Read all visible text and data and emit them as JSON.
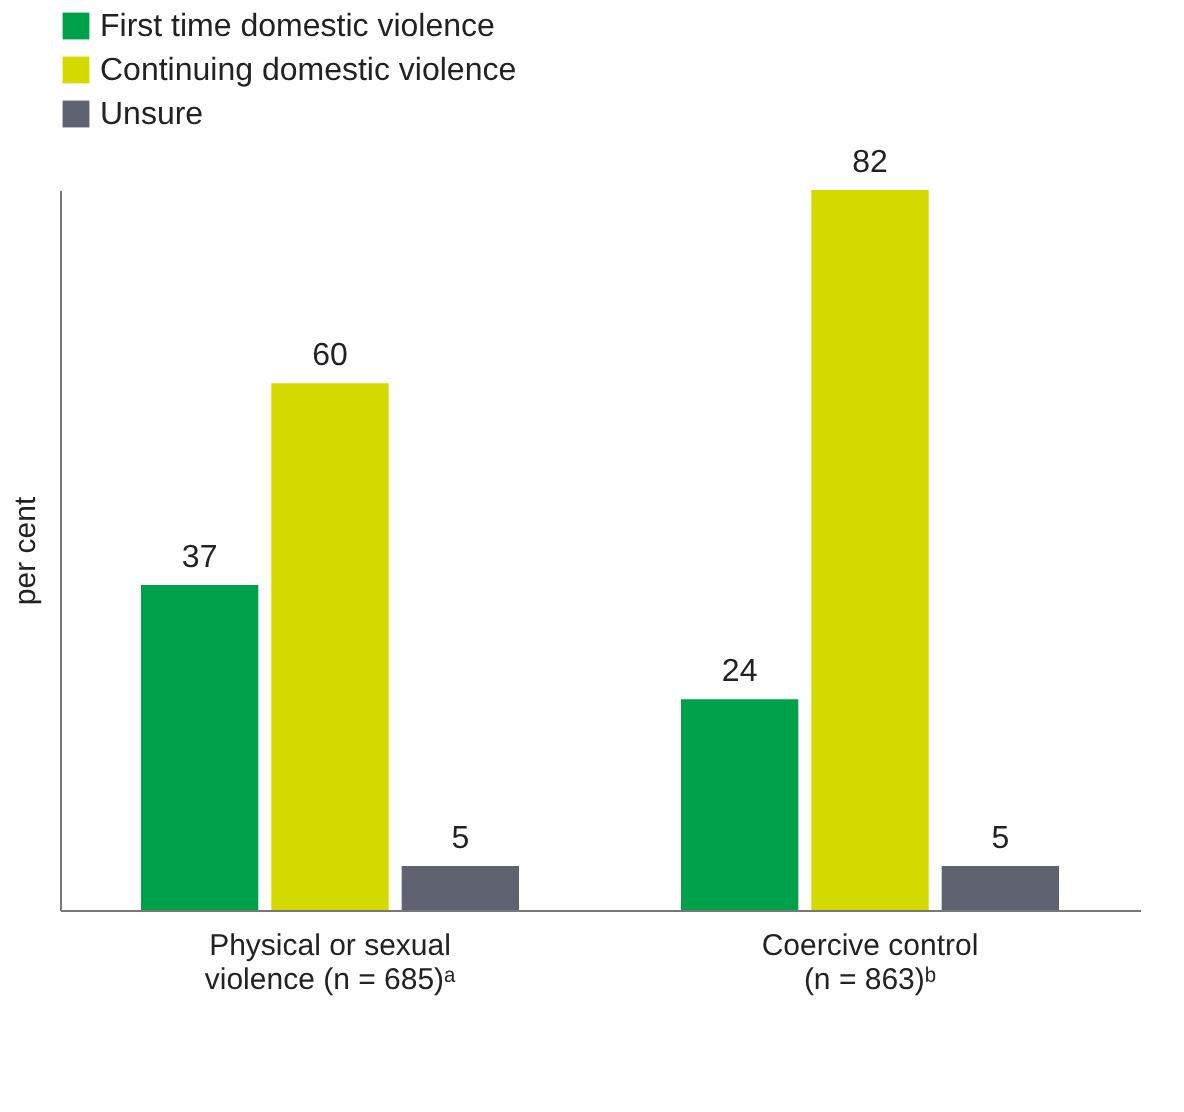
{
  "chart_data": {
    "type": "bar",
    "ylabel": "per cent",
    "categories": [
      "Physical or sexual\nviolence (n = 685)ᵃ",
      "Coercive control\n(n = 863)ᵇ"
    ],
    "series": [
      {
        "name": "First time domestic violence",
        "color": "#00a14b",
        "values": [
          37,
          24
        ]
      },
      {
        "name": "Continuing domestic violence",
        "color": "#d4d900",
        "values": [
          60,
          82
        ]
      },
      {
        "name": "Unsure",
        "color": "#5f6270",
        "values": [
          5,
          5
        ]
      }
    ],
    "data_labels": true,
    "legend": "top left",
    "grid": false
  }
}
